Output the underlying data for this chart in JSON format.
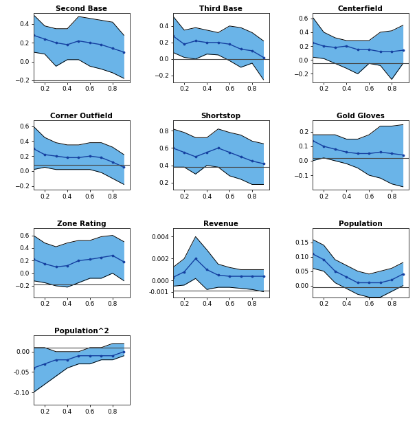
{
  "tau": [
    0.1,
    0.2,
    0.3,
    0.4,
    0.5,
    0.6,
    0.7,
    0.8,
    0.9
  ],
  "panels": [
    {
      "title": "Second Base",
      "coef": [
        0.28,
        0.24,
        0.2,
        0.18,
        0.22,
        0.2,
        0.18,
        0.14,
        0.1
      ],
      "upper": [
        0.5,
        0.38,
        0.35,
        0.35,
        0.48,
        0.46,
        0.44,
        0.42,
        0.28
      ],
      "lower": [
        0.1,
        0.08,
        -0.05,
        0.02,
        0.02,
        -0.05,
        -0.08,
        -0.12,
        -0.18
      ],
      "hline": -0.2,
      "ylim": [
        -0.22,
        0.52
      ],
      "yticks": [
        -0.2,
        0.0,
        0.2,
        0.4
      ]
    },
    {
      "title": "Third Base",
      "coef": [
        0.28,
        0.18,
        0.22,
        0.2,
        0.2,
        0.18,
        0.12,
        0.1,
        0.02
      ],
      "upper": [
        0.52,
        0.35,
        0.38,
        0.35,
        0.32,
        0.4,
        0.38,
        0.32,
        0.22
      ],
      "lower": [
        0.08,
        0.02,
        0.0,
        0.06,
        0.05,
        -0.02,
        -0.1,
        -0.05,
        -0.25
      ],
      "hline": 0.0,
      "ylim": [
        -0.28,
        0.56
      ],
      "yticks": [
        -0.2,
        0.0,
        0.2,
        0.4
      ]
    },
    {
      "title": "Centerfield",
      "coef": [
        0.25,
        0.2,
        0.18,
        0.2,
        0.15,
        0.15,
        0.12,
        0.12,
        0.14
      ],
      "upper": [
        0.62,
        0.4,
        0.32,
        0.28,
        0.28,
        0.28,
        0.4,
        0.42,
        0.5
      ],
      "lower": [
        0.04,
        0.02,
        -0.05,
        -0.12,
        -0.2,
        -0.05,
        -0.08,
        -0.28,
        -0.05
      ],
      "hline": -0.05,
      "ylim": [
        -0.32,
        0.68
      ],
      "yticks": [
        -0.2,
        0.0,
        0.2,
        0.4,
        0.6
      ]
    },
    {
      "title": "Corner Outfield",
      "coef": [
        0.3,
        0.22,
        0.2,
        0.18,
        0.18,
        0.2,
        0.18,
        0.12,
        0.05
      ],
      "upper": [
        0.6,
        0.45,
        0.38,
        0.35,
        0.35,
        0.38,
        0.38,
        0.32,
        0.22
      ],
      "lower": [
        0.02,
        0.05,
        0.02,
        0.02,
        0.02,
        0.02,
        -0.02,
        -0.1,
        -0.18
      ],
      "hline": 0.08,
      "ylim": [
        -0.25,
        0.68
      ],
      "yticks": [
        -0.2,
        0.0,
        0.2,
        0.4,
        0.6
      ]
    },
    {
      "title": "Shortstop",
      "coef": [
        0.6,
        0.55,
        0.5,
        0.55,
        0.6,
        0.55,
        0.5,
        0.45,
        0.42
      ],
      "upper": [
        0.82,
        0.78,
        0.72,
        0.72,
        0.82,
        0.78,
        0.75,
        0.68,
        0.65
      ],
      "lower": [
        0.38,
        0.38,
        0.3,
        0.4,
        0.38,
        0.28,
        0.24,
        0.18,
        0.18
      ],
      "hline": 0.38,
      "ylim": [
        0.12,
        0.92
      ],
      "yticks": [
        0.2,
        0.4,
        0.6,
        0.8
      ]
    },
    {
      "title": "Gold Gloves",
      "coef": [
        0.14,
        0.1,
        0.08,
        0.06,
        0.05,
        0.05,
        0.06,
        0.05,
        0.04
      ],
      "upper": [
        0.18,
        0.18,
        0.18,
        0.15,
        0.15,
        0.18,
        0.24,
        0.24,
        0.25
      ],
      "lower": [
        0.0,
        0.02,
        0.0,
        -0.02,
        -0.05,
        -0.1,
        -0.12,
        -0.16,
        -0.18
      ],
      "hline": 0.02,
      "ylim": [
        -0.2,
        0.28
      ],
      "yticks": [
        -0.1,
        0.0,
        0.1,
        0.2
      ]
    },
    {
      "title": "Zone Rating",
      "coef": [
        0.22,
        0.15,
        0.1,
        0.12,
        0.2,
        0.22,
        0.25,
        0.28,
        0.18
      ],
      "upper": [
        0.6,
        0.48,
        0.42,
        0.48,
        0.52,
        0.52,
        0.58,
        0.6,
        0.5
      ],
      "lower": [
        -0.12,
        -0.15,
        -0.2,
        -0.22,
        -0.15,
        -0.08,
        -0.08,
        0.0,
        -0.12
      ],
      "hline": -0.18,
      "ylim": [
        -0.38,
        0.72
      ],
      "yticks": [
        -0.2,
        0.0,
        0.2,
        0.4,
        0.6
      ]
    },
    {
      "title": "Revenue",
      "coef": [
        0.0003,
        0.0008,
        0.002,
        0.001,
        0.0005,
        0.0004,
        0.0004,
        0.0004,
        0.0004
      ],
      "upper": [
        0.0012,
        0.002,
        0.004,
        0.0028,
        0.0015,
        0.0012,
        0.001,
        0.001,
        0.001
      ],
      "lower": [
        -0.0005,
        -0.0004,
        0.0002,
        -0.0008,
        -0.0006,
        -0.0006,
        -0.0007,
        -0.0008,
        -0.001
      ],
      "hline": -0.0009,
      "ylim": [
        -0.0015,
        0.0048
      ],
      "yticks": [
        -0.001,
        0.0,
        0.002,
        0.004
      ]
    },
    {
      "title": "Population",
      "coef": [
        0.11,
        0.09,
        0.05,
        0.03,
        0.01,
        0.01,
        0.01,
        0.02,
        0.04
      ],
      "upper": [
        0.16,
        0.14,
        0.09,
        0.07,
        0.05,
        0.04,
        0.05,
        0.06,
        0.08
      ],
      "lower": [
        0.06,
        0.05,
        0.01,
        -0.01,
        -0.03,
        -0.04,
        -0.04,
        -0.02,
        0.0
      ],
      "hline": -0.005,
      "ylim": [
        -0.04,
        0.2
      ],
      "yticks": [
        0.0,
        0.05,
        0.1,
        0.15
      ]
    },
    {
      "title": "Population^2",
      "coef": [
        -0.04,
        -0.03,
        -0.02,
        -0.02,
        -0.01,
        -0.01,
        -0.01,
        -0.01,
        0.0
      ],
      "upper": [
        0.01,
        0.01,
        0.0,
        0.0,
        0.0,
        0.01,
        0.01,
        0.02,
        0.02
      ],
      "lower": [
        -0.1,
        -0.08,
        -0.06,
        -0.04,
        -0.03,
        -0.03,
        -0.02,
        -0.02,
        -0.01
      ],
      "hline": 0.01,
      "ylim": [
        -0.13,
        0.04
      ],
      "yticks": [
        -0.1,
        -0.05,
        0.0
      ]
    }
  ],
  "fill_color": "#6ab4e8",
  "line_color": "#1540a0",
  "hline_color": "#444444",
  "bg_color": "white",
  "spine_color": "#333333",
  "figsize": [
    6.07,
    6.2
  ],
  "dpi": 100
}
